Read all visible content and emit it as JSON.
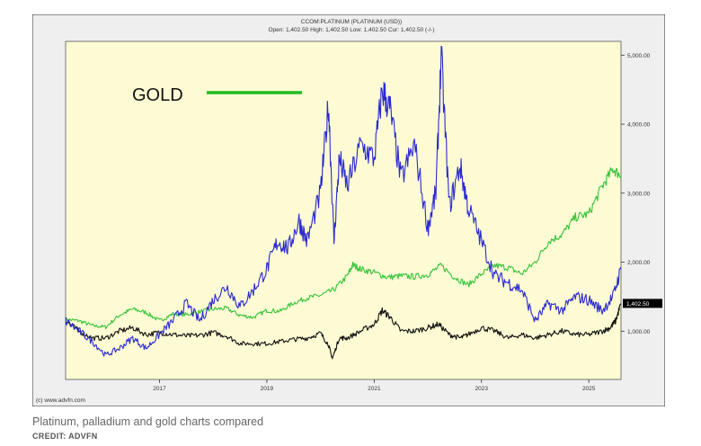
{
  "caption": "Platinum, palladium and gold charts compared",
  "credit": "CREDIT: ADVFN",
  "chart_data": {
    "type": "line",
    "title": "CCOM:PLATINUM (PLATINUM (USD))",
    "subtitle": "Open: 1,402.50 High: 1,402.50 Low: 1,402.50 Cur: 1,402.50 (-/-)",
    "annotation": "GOLD",
    "watermark": "(c) www.advfn.com",
    "current_value_label": "1,402.50",
    "current_value": 1402.5,
    "x_ticks": [
      "2017",
      "2019",
      "2021",
      "2023",
      "2025"
    ],
    "x_tick_values": [
      2017,
      2019,
      2021,
      2023,
      2025
    ],
    "xlim": [
      2015.25,
      2025.6
    ],
    "y_ticks": [
      "1,000.00",
      "2,000.00",
      "3,000.00",
      "4,000.00",
      "5,000.00"
    ],
    "y_tick_values": [
      1000,
      2000,
      3000,
      4000,
      5000
    ],
    "ylim": [
      300,
      5200
    ],
    "grid": false,
    "colors": {
      "plot_bg": "#fdfbd3",
      "panel_bg": "#efefef",
      "palladium": "#2a2ad0",
      "gold": "#36c23a",
      "platinum": "#111111",
      "gold_annotation_line": "#22bb22",
      "value_tag": "#000000"
    },
    "series": [
      {
        "key": "palladium",
        "x": [
          2015.25,
          2015.5,
          2015.75,
          2016.0,
          2016.25,
          2016.5,
          2016.75,
          2017.0,
          2017.25,
          2017.5,
          2017.75,
          2018.0,
          2018.25,
          2018.5,
          2018.75,
          2019.0,
          2019.2,
          2019.4,
          2019.6,
          2019.75,
          2020.0,
          2020.15,
          2020.25,
          2020.35,
          2020.5,
          2020.75,
          2021.0,
          2021.15,
          2021.3,
          2021.5,
          2021.75,
          2022.0,
          2022.15,
          2022.25,
          2022.4,
          2022.6,
          2022.75,
          2023.0,
          2023.25,
          2023.5,
          2023.75,
          2024.0,
          2024.25,
          2024.5,
          2024.75,
          2025.0,
          2025.25,
          2025.45,
          2025.6
        ],
        "y": [
          1150,
          1000,
          850,
          650,
          750,
          900,
          750,
          950,
          1150,
          1400,
          1150,
          1450,
          1650,
          1350,
          1600,
          1900,
          2300,
          2200,
          2600,
          2300,
          3000,
          4300,
          2300,
          3500,
          3100,
          3700,
          3500,
          4500,
          4200,
          3200,
          3700,
          2500,
          3000,
          5000,
          2800,
          3400,
          2800,
          2300,
          1800,
          1700,
          1600,
          1150,
          1400,
          1300,
          1500,
          1450,
          1300,
          1500,
          1900
        ]
      },
      {
        "key": "gold",
        "x": [
          2015.25,
          2015.5,
          2015.75,
          2016.0,
          2016.25,
          2016.5,
          2016.75,
          2017.0,
          2017.25,
          2017.5,
          2017.75,
          2018.0,
          2018.25,
          2018.5,
          2018.75,
          2019.0,
          2019.25,
          2019.5,
          2019.75,
          2020.0,
          2020.25,
          2020.5,
          2020.6,
          2020.75,
          2021.0,
          2021.25,
          2021.5,
          2021.75,
          2022.0,
          2022.25,
          2022.5,
          2022.75,
          2023.0,
          2023.25,
          2023.5,
          2023.75,
          2024.0,
          2024.25,
          2024.5,
          2024.75,
          2025.0,
          2025.25,
          2025.45,
          2025.6
        ],
        "y": [
          1170,
          1150,
          1080,
          1060,
          1230,
          1320,
          1270,
          1150,
          1250,
          1240,
          1280,
          1320,
          1330,
          1230,
          1200,
          1300,
          1290,
          1410,
          1480,
          1520,
          1600,
          1800,
          1960,
          1900,
          1850,
          1780,
          1800,
          1790,
          1820,
          1950,
          1780,
          1670,
          1830,
          1950,
          1920,
          1830,
          2000,
          2300,
          2400,
          2650,
          2700,
          3100,
          3350,
          3250
        ]
      },
      {
        "key": "platinum",
        "x": [
          2015.25,
          2015.5,
          2015.75,
          2016.0,
          2016.25,
          2016.5,
          2016.75,
          2017.0,
          2017.25,
          2017.5,
          2017.75,
          2018.0,
          2018.25,
          2018.5,
          2018.75,
          2019.0,
          2019.25,
          2019.5,
          2019.75,
          2020.0,
          2020.15,
          2020.22,
          2020.35,
          2020.5,
          2020.75,
          2021.0,
          2021.15,
          2021.3,
          2021.5,
          2021.75,
          2022.0,
          2022.2,
          2022.4,
          2022.6,
          2022.75,
          2023.0,
          2023.25,
          2023.5,
          2023.75,
          2024.0,
          2024.25,
          2024.5,
          2024.75,
          2025.0,
          2025.25,
          2025.4,
          2025.5,
          2025.6
        ],
        "y": [
          1150,
          1000,
          900,
          900,
          1000,
          1050,
          950,
          980,
          950,
          930,
          940,
          980,
          930,
          820,
          820,
          820,
          850,
          880,
          900,
          970,
          800,
          600,
          900,
          900,
          1000,
          1100,
          1300,
          1200,
          1000,
          1000,
          1050,
          1100,
          950,
          900,
          950,
          1050,
          1000,
          900,
          950,
          900,
          950,
          1000,
          950,
          950,
          1000,
          1050,
          1150,
          1400
        ]
      }
    ]
  }
}
